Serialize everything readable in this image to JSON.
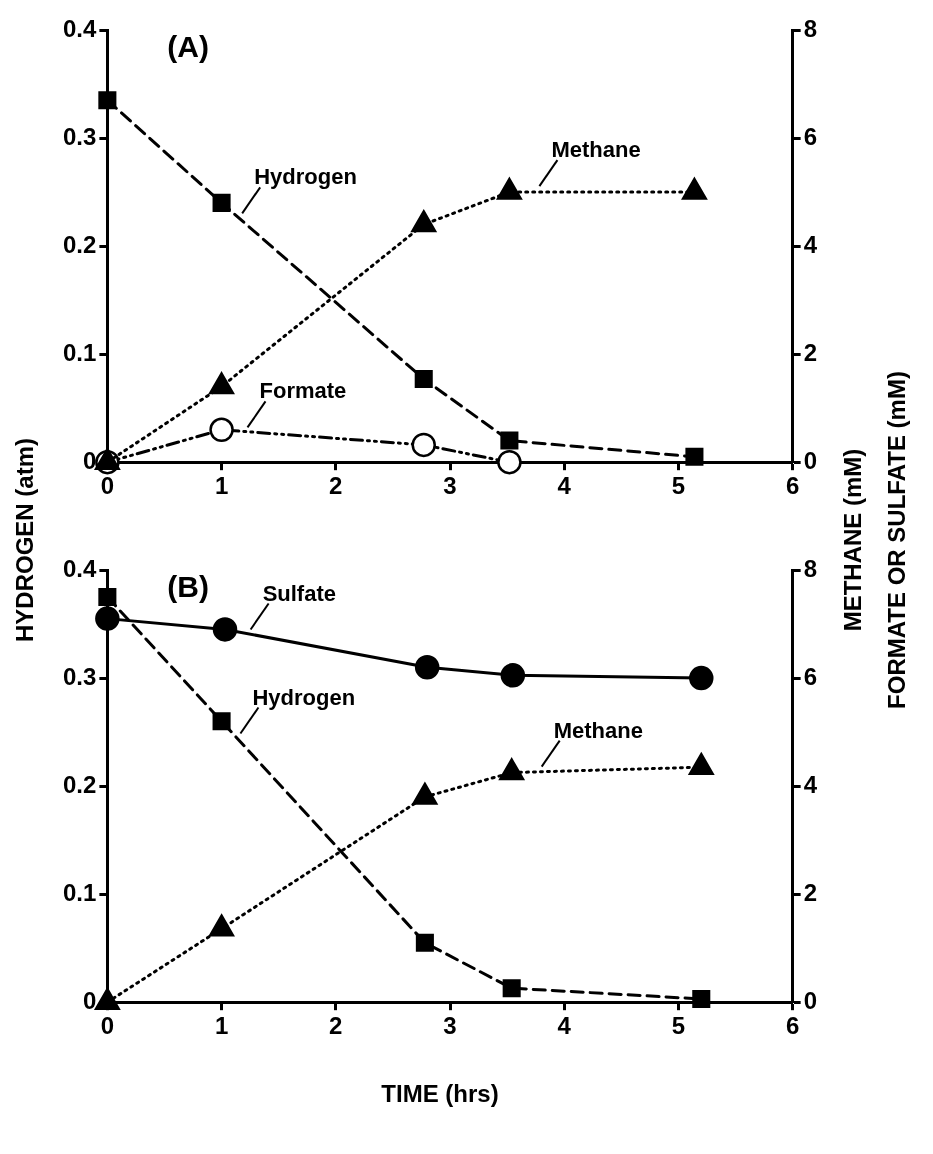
{
  "chart_data": [
    {
      "type": "line",
      "title": "(A)",
      "ylabel": "HYDROGEN (atm)",
      "y2label": "METHANE (mM)\nFORMATE OR SULFATE (mM)",
      "xlim": [
        0,
        6
      ],
      "xticks": [
        0,
        1,
        2,
        3,
        4,
        5,
        6
      ],
      "ylim": [
        0,
        0.4
      ],
      "yticks": [
        0,
        0.1,
        0.2,
        0.3,
        0.4
      ],
      "y2lim": [
        0,
        8
      ],
      "y2ticks": [
        0,
        2,
        4,
        6,
        8
      ],
      "grid": false,
      "legend": false,
      "series": [
        {
          "name": "Hydrogen",
          "color": "#000000",
          "marker": "square",
          "line_style": "dashed",
          "x": [
            0,
            1,
            2.77,
            3.52,
            5.14
          ],
          "values": [
            0.335,
            0.24,
            0.077,
            0.02,
            0.005
          ]
        },
        {
          "name": "Formate",
          "color": "#000000",
          "marker": "circle",
          "line_style": "dashdot",
          "axis": "y2",
          "x": [
            0,
            1,
            2.77,
            3.52
          ],
          "values": [
            0,
            0.6,
            0.32,
            0
          ]
        },
        {
          "name": "Methane",
          "color": "#000000",
          "marker": "triangle",
          "line_style": "dotted",
          "axis": "y2",
          "x": [
            0,
            1,
            2.77,
            3.52,
            5.14
          ],
          "values": [
            0,
            1.4,
            4.4,
            5.0,
            5.0
          ]
        }
      ]
    },
    {
      "type": "line",
      "title": "(B)",
      "xlabel": "TIME (hrs)",
      "xlim": [
        0,
        6
      ],
      "xticks": [
        0,
        1,
        2,
        3,
        4,
        5,
        6
      ],
      "ylim": [
        0,
        0.4
      ],
      "yticks": [
        0,
        0.1,
        0.2,
        0.3,
        0.4
      ],
      "y2lim": [
        0,
        8
      ],
      "y2ticks": [
        0,
        2,
        4,
        6,
        8
      ],
      "grid": false,
      "legend": false,
      "series": [
        {
          "name": "Sulfate",
          "color": "#000000",
          "marker": "circle",
          "line_style": "solid",
          "axis": "y2",
          "x": [
            0,
            1.03,
            2.8,
            3.55,
            5.2
          ],
          "values": [
            7.1,
            6.9,
            6.2,
            6.05,
            6.0
          ]
        },
        {
          "name": "Hydrogen",
          "color": "#000000",
          "marker": "square",
          "line_style": "dashed",
          "x": [
            0,
            1,
            2.78,
            3.54,
            5.2
          ],
          "values": [
            0.375,
            0.26,
            0.055,
            0.013,
            0.003
          ]
        },
        {
          "name": "Methane",
          "color": "#000000",
          "marker": "triangle",
          "line_style": "dotted",
          "axis": "y2",
          "x": [
            0,
            1,
            2.78,
            3.54,
            5.2
          ],
          "values": [
            0,
            1.36,
            3.8,
            4.25,
            4.35
          ]
        }
      ]
    }
  ]
}
